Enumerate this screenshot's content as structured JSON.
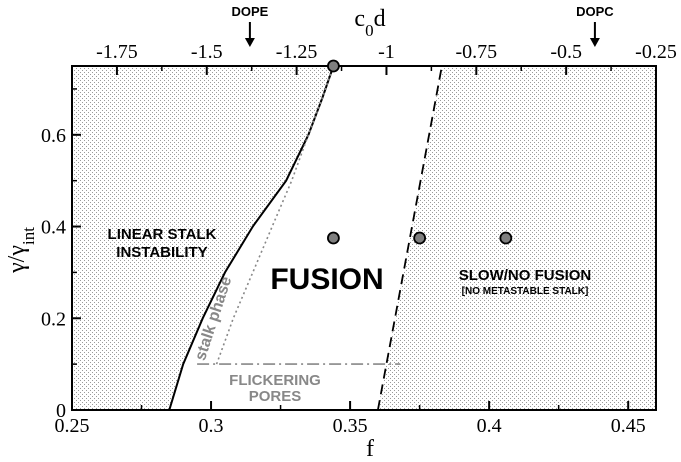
{
  "chart_data": {
    "type": "scatter",
    "xlabel": "f",
    "ylabel": "γ/γ",
    "ylabel_sub": "int",
    "top_xlabel": "c",
    "top_xlabel_sub": "0",
    "top_xlabel_suffix": "d",
    "xlim": [
      0.25,
      0.46
    ],
    "ylim": [
      0,
      0.75
    ],
    "top_xlim": [
      -1.875,
      -0.25
    ],
    "x_ticks": [
      0.25,
      0.3,
      0.35,
      0.4,
      0.45
    ],
    "x_tick_labels": [
      "0.25",
      "0.3",
      "0.35",
      "0.4",
      "0.45"
    ],
    "y_ticks": [
      0,
      0.2,
      0.4,
      0.6
    ],
    "y_tick_labels": [
      "0",
      "0.2",
      "0.4",
      "0.6"
    ],
    "top_ticks": [
      -1.75,
      -1.5,
      -1.25,
      -1,
      -0.75,
      -0.5,
      -0.25
    ],
    "top_tick_labels": [
      "-1.75",
      "-1.5",
      "-1.25",
      "-1",
      "-0.75",
      "-0.5",
      "-0.25"
    ],
    "top_markers": [
      {
        "label": "DOPE",
        "value": -1.38
      },
      {
        "label": "DOPC",
        "value": -0.42
      }
    ],
    "points": [
      {
        "x": 0.344,
        "y": 0.75
      },
      {
        "x": 0.344,
        "y": 0.375
      },
      {
        "x": 0.375,
        "y": 0.375
      },
      {
        "x": 0.406,
        "y": 0.375
      }
    ],
    "linear_stalk_boundary": [
      [
        0.285,
        0
      ],
      [
        0.29,
        0.1
      ],
      [
        0.297,
        0.2
      ],
      [
        0.305,
        0.3
      ],
      [
        0.315,
        0.4
      ],
      [
        0.327,
        0.5
      ],
      [
        0.335,
        0.6
      ],
      [
        0.34,
        0.68
      ],
      [
        0.344,
        0.75
      ]
    ],
    "stalk_phase_boundary": [
      [
        0.302,
        0.1
      ],
      [
        0.308,
        0.2
      ],
      [
        0.315,
        0.3
      ],
      [
        0.322,
        0.4
      ],
      [
        0.329,
        0.5
      ],
      [
        0.335,
        0.6
      ],
      [
        0.34,
        0.68
      ],
      [
        0.344,
        0.75
      ]
    ],
    "fusion_boundary": [
      [
        0.36,
        0
      ],
      [
        0.383,
        0.75
      ]
    ],
    "flickering_pores_boundary": [
      [
        0.295,
        0.1
      ],
      [
        0.368,
        0.1
      ]
    ],
    "annotations": {
      "linear_stalk_line1": "LINEAR STALK",
      "linear_stalk_line2": "INSTABILITY",
      "stalk_phase": "stalk phase",
      "fusion": "FUSION",
      "slow_fusion_line1": "SLOW/NO FUSION",
      "slow_fusion_line2": "[NO METASTABLE STALK]",
      "flickering_line1": "FLICKERING",
      "flickering_line2": "PORES"
    },
    "colors": {
      "dots": "#9a9a9a",
      "points": "#7f7f7f",
      "grey_line": "#888888",
      "grey_text": "#888888"
    },
    "grid": false
  }
}
